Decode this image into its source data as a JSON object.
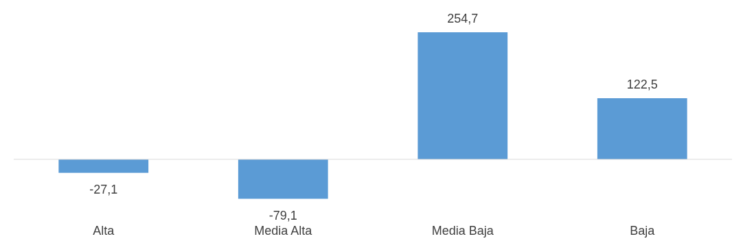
{
  "chart_data": {
    "type": "bar",
    "categories": [
      "Alta",
      "Media Alta",
      "Media Baja",
      "Baja"
    ],
    "values": [
      -27.1,
      -79.1,
      254.7,
      122.5
    ],
    "value_labels": [
      "-27,1",
      "-79,1",
      "254,7",
      "122,5"
    ],
    "color": "#5b9bd5"
  }
}
